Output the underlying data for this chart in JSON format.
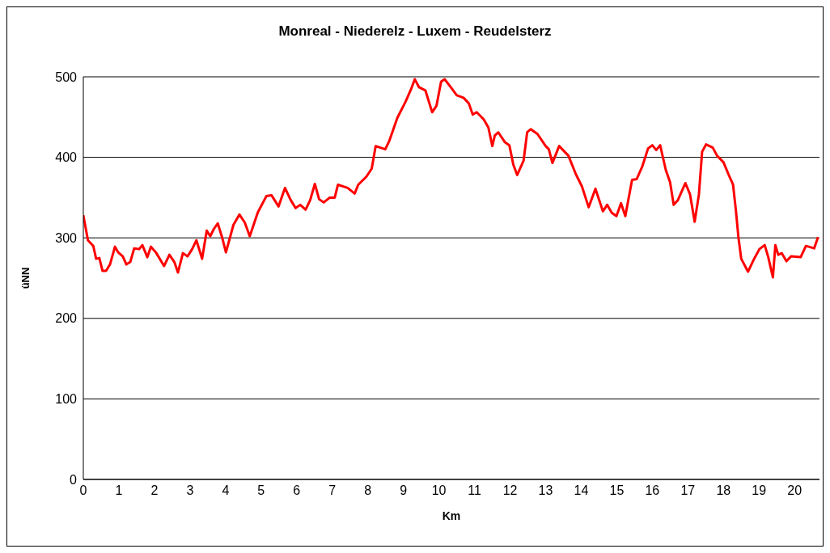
{
  "chart_data": {
    "type": "line",
    "title": "Monreal - Niederelz - Luxem - Reudelsterz",
    "xlabel": "Km",
    "ylabel": "üNN",
    "x": [
      0,
      0.13,
      0.28,
      0.36,
      0.45,
      0.54,
      0.64,
      0.75,
      0.89,
      0.98,
      1.11,
      1.21,
      1.32,
      1.43,
      1.57,
      1.66,
      1.8,
      1.9,
      2.04,
      2.27,
      2.42,
      2.56,
      2.66,
      2.8,
      2.93,
      3.06,
      3.18,
      3.34,
      3.47,
      3.57,
      3.67,
      3.78,
      3.9,
      4.01,
      4.22,
      4.39,
      4.54,
      4.68,
      4.91,
      5.15,
      5.29,
      5.49,
      5.67,
      5.83,
      5.97,
      6.1,
      6.25,
      6.38,
      6.51,
      6.63,
      6.76,
      6.93,
      7.07,
      7.16,
      7.43,
      7.63,
      7.73,
      7.96,
      8.11,
      8.22,
      8.49,
      8.6,
      8.83,
      9.06,
      9.21,
      9.32,
      9.44,
      9.62,
      9.81,
      9.93,
      10.06,
      10.16,
      10.35,
      10.5,
      10.69,
      10.84,
      10.95,
      11.06,
      11.26,
      11.39,
      11.5,
      11.57,
      11.67,
      11.85,
      11.98,
      12.09,
      12.2,
      12.38,
      12.48,
      12.58,
      12.77,
      13,
      13.09,
      13.19,
      13.38,
      13.64,
      13.85,
      14.02,
      14.21,
      14.4,
      14.61,
      14.73,
      14.86,
      14.99,
      15.12,
      15.24,
      15.43,
      15.56,
      15.72,
      15.88,
      16,
      16.11,
      16.22,
      16.38,
      16.5,
      16.6,
      16.72,
      16.93,
      17.06,
      17.19,
      17.31,
      17.4,
      17.51,
      17.7,
      17.82,
      18,
      18.14,
      18.27,
      18.35,
      18.42,
      18.5,
      18.69,
      18.84,
      19.01,
      19.16,
      19.26,
      19.39,
      19.46,
      19.54,
      19.64,
      19.77,
      19.9,
      20.17,
      20.32,
      20.55,
      20.66
    ],
    "series": [
      {
        "color": "#ff0000",
        "values": [
          328,
          297,
          290,
          274,
          275,
          259,
          259,
          267,
          289,
          282,
          277,
          267,
          270,
          287,
          286,
          291,
          276,
          289,
          282,
          265,
          279,
          270,
          257,
          281,
          277,
          286,
          297,
          274,
          309,
          302,
          311,
          318,
          301,
          282,
          316,
          329,
          319,
          302,
          332,
          352,
          353,
          339,
          362,
          347,
          337,
          341,
          335,
          347,
          367,
          348,
          344,
          350,
          350,
          366,
          362,
          355,
          366,
          376,
          386,
          414,
          410,
          420,
          449,
          469,
          484,
          497,
          487,
          483,
          456,
          464,
          494,
          497,
          486,
          477,
          474,
          467,
          453,
          456,
          447,
          437,
          414,
          427,
          431,
          419,
          415,
          391,
          378,
          396,
          431,
          435,
          429,
          414,
          410,
          393,
          414,
          402,
          379,
          364,
          338,
          361,
          333,
          341,
          331,
          327,
          343,
          327,
          372,
          373,
          389,
          411,
          415,
          409,
          415,
          384,
          369,
          341,
          347,
          368,
          354,
          320,
          354,
          407,
          416,
          412,
          402,
          394,
          379,
          366,
          334,
          301,
          274,
          258,
          272,
          286,
          291,
          276,
          251,
          291,
          279,
          281,
          271,
          277,
          276,
          290,
          287,
          301
        ]
      }
    ],
    "xlim": [
      0,
      20.7
    ],
    "xticks": [
      0,
      1,
      2,
      3,
      4,
      5,
      6,
      7,
      8,
      9,
      10,
      11,
      12,
      13,
      14,
      15,
      16,
      17,
      18,
      19,
      20
    ],
    "ylim": [
      0,
      500
    ],
    "yticks": [
      0,
      100,
      200,
      300,
      400,
      500
    ],
    "grid": "y",
    "marker": "none",
    "line_style": "solid"
  }
}
